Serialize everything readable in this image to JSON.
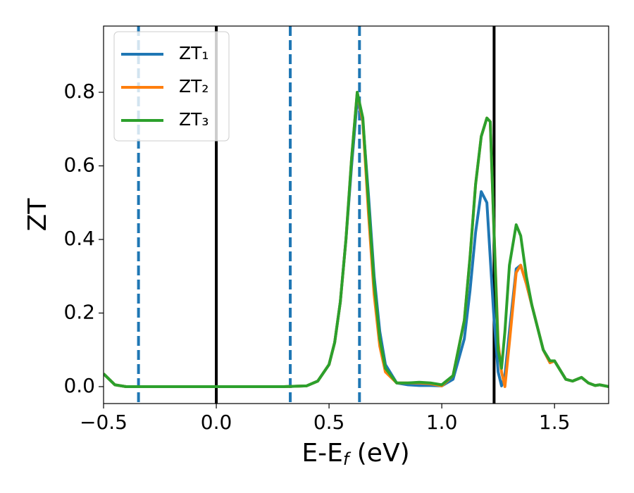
{
  "chart_data": {
    "type": "line",
    "xlabel": [
      "E-E",
      "f",
      " (eV)"
    ],
    "ylabel": "ZT",
    "xlim": [
      -0.5,
      1.74
    ],
    "ylim": [
      -0.046,
      0.98
    ],
    "xticks": [
      {
        "value": -0.5,
        "label": "−0.5"
      },
      {
        "value": 0.0,
        "label": "0.0"
      },
      0.5,
      {
        "value": 1.0,
        "label": "1.0"
      },
      1.5
    ],
    "yticks": [
      {
        "value": 0.0,
        "label": "0.0"
      },
      0.2,
      0.4,
      0.6,
      0.8
    ],
    "legend": "upper left",
    "vlines": [
      {
        "x": -0.345,
        "style": "dashed",
        "color": "#1f77b4"
      },
      {
        "x": 0.0,
        "style": "solid",
        "color": "#000000"
      },
      {
        "x": 0.328,
        "style": "dashed",
        "color": "#1f77b4"
      },
      {
        "x": 0.635,
        "style": "dashed",
        "color": "#1f77b4"
      },
      {
        "x": 1.232,
        "style": "solid",
        "color": "#000000"
      }
    ],
    "x": [
      -0.5,
      -0.45,
      -0.4,
      -0.3,
      0.0,
      0.3,
      0.4,
      0.45,
      0.5,
      0.525,
      0.55,
      0.575,
      0.6,
      0.625,
      0.65,
      0.675,
      0.7,
      0.725,
      0.75,
      0.8,
      0.85,
      0.9,
      0.95,
      1.0,
      1.05,
      1.1,
      1.125,
      1.15,
      1.175,
      1.2,
      1.215,
      1.23,
      1.25,
      1.265,
      1.28,
      1.3,
      1.33,
      1.35,
      1.375,
      1.4,
      1.45,
      1.48,
      1.5,
      1.55,
      1.58,
      1.62,
      1.65,
      1.68,
      1.7,
      1.74
    ],
    "series": [
      {
        "name": "ZT₁",
        "color": "#1f77b4",
        "values": [
          0.035,
          0.005,
          0,
          0,
          0,
          0,
          0.002,
          0.015,
          0.06,
          0.12,
          0.23,
          0.4,
          0.6,
          0.78,
          0.72,
          0.52,
          0.3,
          0.15,
          0.06,
          0.01,
          0.005,
          0.003,
          0.003,
          0.002,
          0.02,
          0.13,
          0.26,
          0.42,
          0.53,
          0.5,
          0.35,
          0.2,
          0.04,
          0.002,
          0.03,
          0.15,
          0.32,
          0.33,
          0.28,
          0.22,
          0.1,
          0.065,
          0.07,
          0.02,
          0.015,
          0.025,
          0.01,
          0.003,
          0.005,
          0.0
        ]
      },
      {
        "name": "ZT₂",
        "color": "#ff7f0e",
        "values": [
          0.035,
          0.005,
          0,
          0,
          0,
          0,
          0.002,
          0.015,
          0.06,
          0.12,
          0.23,
          0.4,
          0.62,
          0.8,
          0.72,
          0.47,
          0.25,
          0.11,
          0.04,
          0.01,
          0.01,
          0.01,
          0.008,
          0.002,
          0.03,
          0.18,
          0.35,
          0.55,
          0.68,
          0.73,
          0.72,
          0.45,
          0.12,
          0.04,
          0.0,
          0.12,
          0.31,
          0.33,
          0.28,
          0.22,
          0.1,
          0.065,
          0.07,
          0.02,
          0.015,
          0.025,
          0.01,
          0.003,
          0.005,
          0.0
        ]
      },
      {
        "name": "ZT₃",
        "color": "#2ca02c",
        "values": [
          0.035,
          0.005,
          0,
          0,
          0,
          0,
          0.002,
          0.015,
          0.06,
          0.12,
          0.23,
          0.4,
          0.62,
          0.8,
          0.73,
          0.5,
          0.28,
          0.13,
          0.05,
          0.01,
          0.01,
          0.012,
          0.01,
          0.005,
          0.03,
          0.18,
          0.35,
          0.55,
          0.68,
          0.73,
          0.72,
          0.45,
          0.1,
          0.05,
          0.15,
          0.33,
          0.44,
          0.41,
          0.3,
          0.22,
          0.1,
          0.07,
          0.07,
          0.02,
          0.015,
          0.025,
          0.01,
          0.003,
          0.005,
          0.0
        ]
      }
    ]
  }
}
